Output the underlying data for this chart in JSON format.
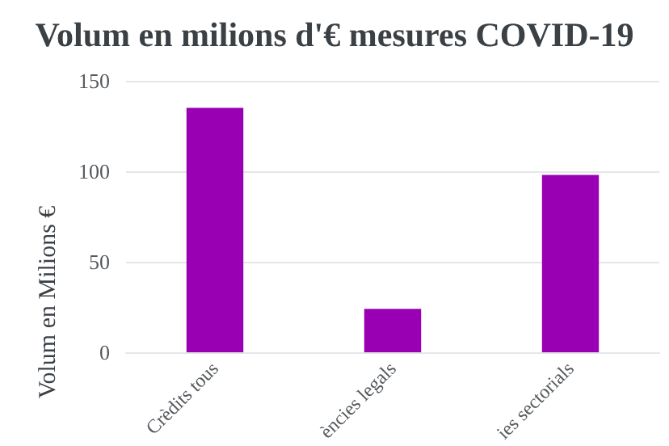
{
  "chart_data": {
    "type": "bar",
    "title": "Volum en milions d'€ mesures COVID-19",
    "ylabel": "Volum en Milions €",
    "categories": [
      "Crèdits tous",
      "ències legals",
      "ies sectorials"
    ],
    "values": [
      135,
      24,
      98
    ],
    "color": "#9900b4",
    "ylim": [
      0,
      150
    ],
    "yticks": [
      0,
      50,
      100,
      150
    ],
    "grid": "y"
  }
}
